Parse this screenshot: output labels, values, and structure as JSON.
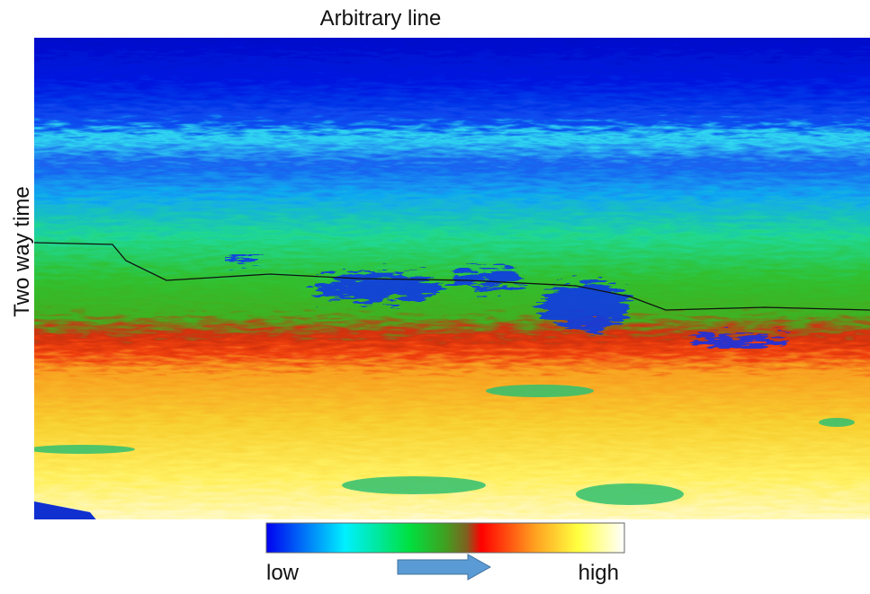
{
  "title": "Arbitrary line",
  "y_axis_label": "Two way time",
  "colorbar": {
    "low_label": "low",
    "high_label": "high"
  }
}
